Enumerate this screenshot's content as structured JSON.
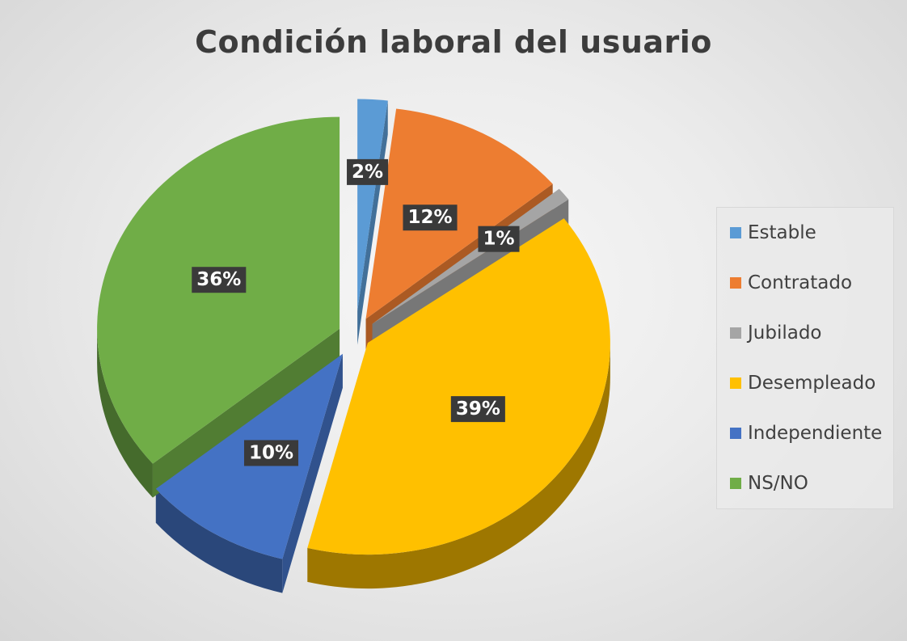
{
  "chart_data": {
    "type": "pie",
    "title": "Condición laboral del usuario",
    "legend_position": "right",
    "slices": [
      {
        "label": "Estable",
        "value": 2,
        "display": "2%",
        "color": "#5b9bd5"
      },
      {
        "label": "Contratado",
        "value": 12,
        "display": "12%",
        "color": "#ed7d31"
      },
      {
        "label": "Jubilado",
        "value": 1,
        "display": "1%",
        "color": "#a5a5a5"
      },
      {
        "label": "Desempleado",
        "value": 39,
        "display": "39%",
        "color": "#ffc000"
      },
      {
        "label": "Independiente",
        "value": 10,
        "display": "10%",
        "color": "#4472c4"
      },
      {
        "label": "NS/NO",
        "value": 36,
        "display": "36%",
        "color": "#70ad47"
      }
    ]
  }
}
